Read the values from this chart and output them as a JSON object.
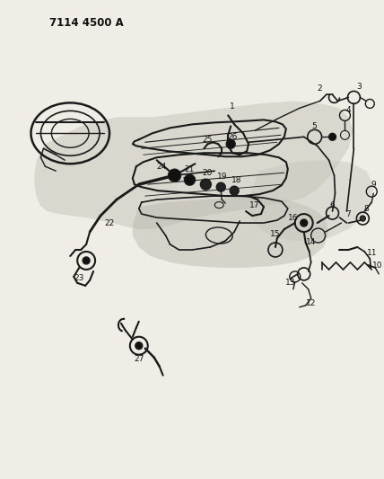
{
  "title": "7114 4500 A",
  "bg_color": "#d8d5cc",
  "line_color": "#1a1a1a",
  "label_color": "#111111",
  "label_fontsize": 6.5,
  "title_fontsize": 8.5,
  "fig_width": 4.28,
  "fig_height": 5.33,
  "white_bg": "#f0ede6"
}
